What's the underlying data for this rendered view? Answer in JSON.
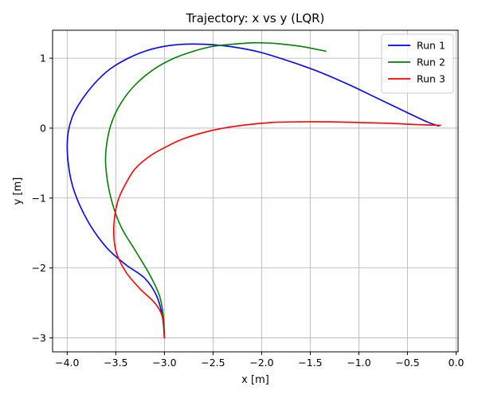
{
  "chart_data": {
    "type": "line",
    "title": "Trajectory: x vs y (LQR)",
    "xlabel": "x [m]",
    "ylabel": "y [m]",
    "xlim": [
      -4.15,
      0.02
    ],
    "ylim": [
      -3.2,
      1.4
    ],
    "grid": true,
    "legend_position": "top-right",
    "x_ticks": [
      -4.0,
      -3.5,
      -3.0,
      -2.5,
      -2.0,
      -1.5,
      -1.0,
      -0.5,
      0.0
    ],
    "x_tick_labels": [
      "−4.0",
      "−3.5",
      "−3.0",
      "−2.5",
      "−2.0",
      "−1.5",
      "−1.0",
      "−0.5",
      "0.0"
    ],
    "y_ticks": [
      -3,
      -2,
      -1,
      0,
      1
    ],
    "y_tick_labels": [
      "−3",
      "−2",
      "−1",
      "0",
      "1"
    ],
    "series": [
      {
        "name": "Run 1",
        "color": "#0000ff",
        "x": [
          -3.0,
          -3.02,
          -3.08,
          -3.2,
          -3.4,
          -3.6,
          -3.8,
          -3.95,
          -4.0,
          -3.95,
          -3.8,
          -3.6,
          -3.4,
          -3.2,
          -3.0,
          -2.8,
          -2.6,
          -2.4,
          -2.2,
          -2.0,
          -1.7,
          -1.4,
          -1.1,
          -0.8,
          -0.5,
          -0.3,
          -0.18
        ],
        "y": [
          -3.0,
          -2.7,
          -2.4,
          -2.15,
          -1.95,
          -1.7,
          -1.3,
          -0.8,
          -0.25,
          0.15,
          0.5,
          0.8,
          0.98,
          1.1,
          1.17,
          1.2,
          1.2,
          1.18,
          1.14,
          1.08,
          0.95,
          0.8,
          0.62,
          0.42,
          0.22,
          0.09,
          0.03
        ]
      },
      {
        "name": "Run 2",
        "color": "#008000",
        "x": [
          -3.0,
          -3.01,
          -3.05,
          -3.15,
          -3.3,
          -3.45,
          -3.55,
          -3.6,
          -3.6,
          -3.55,
          -3.45,
          -3.3,
          -3.1,
          -2.9,
          -2.7,
          -2.5,
          -2.3,
          -2.1,
          -2.0,
          -1.85,
          -1.6,
          -1.34
        ],
        "y": [
          -3.0,
          -2.7,
          -2.4,
          -2.1,
          -1.75,
          -1.4,
          -1.0,
          -0.6,
          -0.3,
          0.05,
          0.35,
          0.62,
          0.85,
          1.0,
          1.1,
          1.17,
          1.2,
          1.22,
          1.22,
          1.21,
          1.17,
          1.1
        ]
      },
      {
        "name": "Run 3",
        "color": "#ff0000",
        "x": [
          -3.0,
          -3.02,
          -3.1,
          -3.25,
          -3.4,
          -3.5,
          -3.52,
          -3.48,
          -3.4,
          -3.3,
          -3.15,
          -3.0,
          -2.8,
          -2.5,
          -2.2,
          -1.9,
          -1.6,
          -1.3,
          -1.0,
          -0.7,
          -0.4,
          -0.16
        ],
        "y": [
          -3.0,
          -2.7,
          -2.5,
          -2.3,
          -2.05,
          -1.75,
          -1.4,
          -1.05,
          -0.8,
          -0.58,
          -0.4,
          -0.28,
          -0.15,
          -0.03,
          0.04,
          0.08,
          0.09,
          0.09,
          0.08,
          0.07,
          0.05,
          0.04
        ]
      }
    ]
  }
}
